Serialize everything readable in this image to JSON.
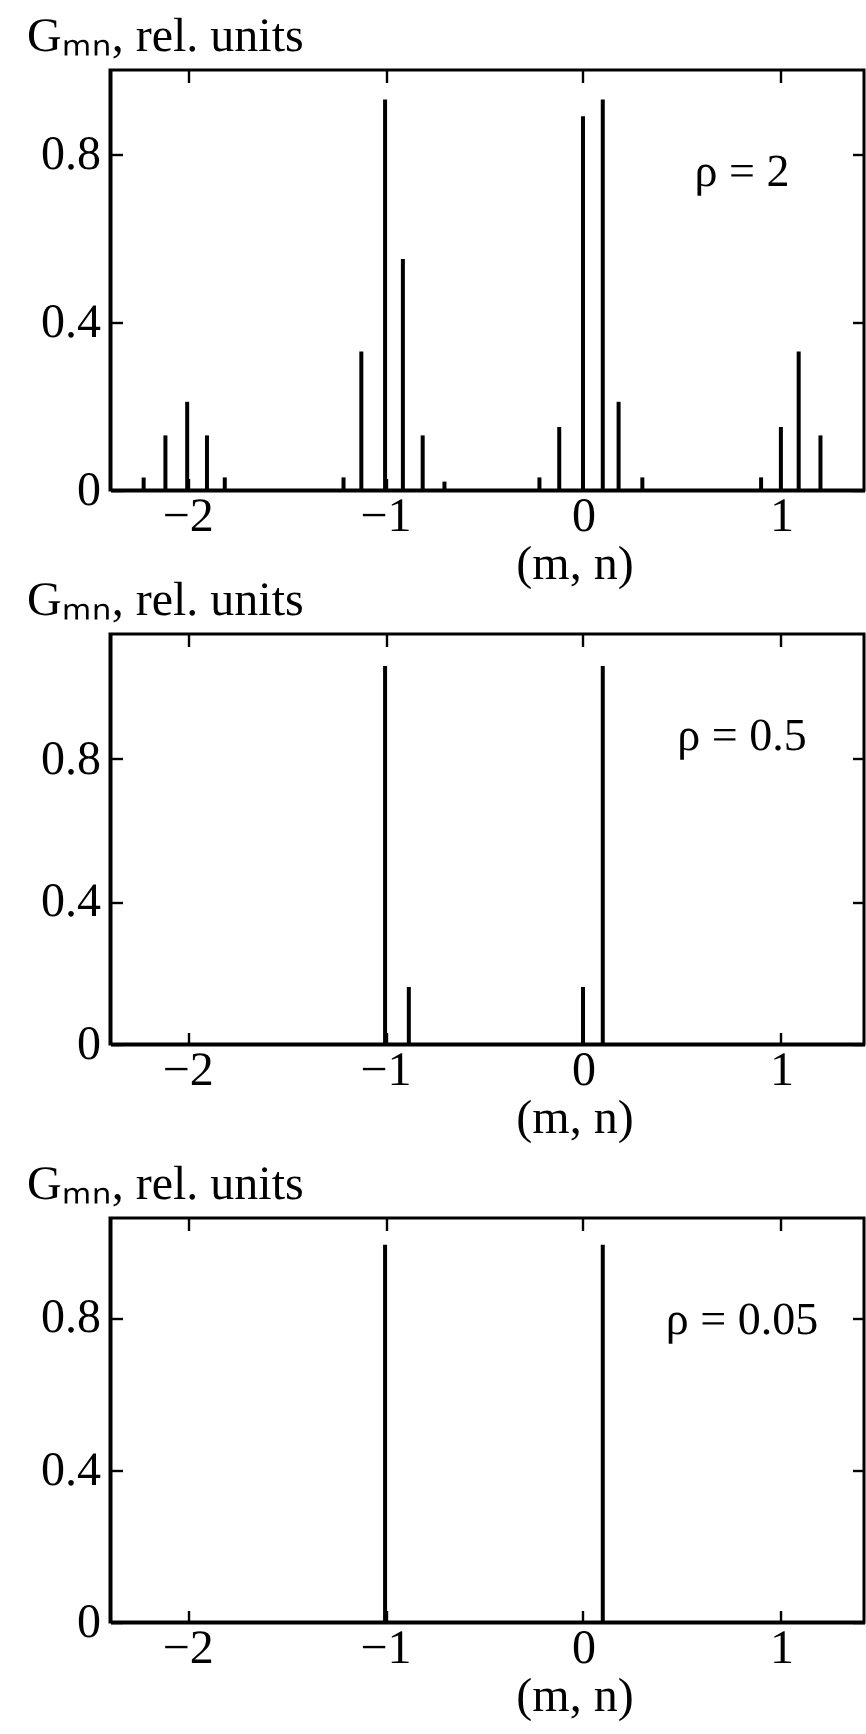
{
  "chart_data": [
    {
      "type": "bar",
      "xlabel": "(m, n)",
      "ylabel": "Gₘₙ, rel. units",
      "annotations": [
        "ρ = 2"
      ],
      "x": [
        -2.22,
        -2.11,
        -2.0,
        -1.9,
        -1.81,
        -1.21,
        -1.12,
        -1.0,
        -0.91,
        -0.81,
        -0.7,
        -0.22,
        -0.12,
        0.0,
        0.1,
        0.18,
        0.3,
        0.9,
        1.0,
        1.09,
        1.2
      ],
      "values": [
        0.03,
        0.13,
        0.21,
        0.13,
        0.03,
        0.03,
        0.33,
        0.93,
        0.55,
        0.13,
        0.02,
        0.03,
        0.15,
        0.89,
        0.93,
        0.21,
        0.03,
        0.03,
        0.15,
        0.33,
        0.13
      ],
      "color": "#000000",
      "xlim": [
        -2.39,
        1.42
      ],
      "ylim": [
        0,
        1.0
      ],
      "xticks": [
        -2,
        -1,
        0,
        1
      ],
      "yticks": [
        0,
        0.4,
        0.8
      ]
    },
    {
      "type": "bar",
      "xlabel": "(m, n)",
      "ylabel": "Gₘₙ, rel. units",
      "annotations": [
        "ρ = 0.5"
      ],
      "x": [
        -1.0,
        -0.88,
        0.0,
        0.1
      ],
      "values": [
        1.06,
        0.16,
        0.16,
        1.06
      ],
      "color": "#000000",
      "xlim": [
        -2.39,
        1.42
      ],
      "ylim": [
        0,
        1.15
      ],
      "xticks": [
        -2,
        -1,
        0,
        1
      ],
      "yticks": [
        0,
        0.4,
        0.8
      ]
    },
    {
      "type": "bar",
      "xlabel": "(m, n)",
      "ylabel": "Gₘₙ, rel. units",
      "annotations": [
        "ρ = 0.05"
      ],
      "x": [
        -1.0,
        0.1
      ],
      "values": [
        0.99,
        0.99
      ],
      "color": "#000000",
      "xlim": [
        -2.39,
        1.42
      ],
      "ylim": [
        0,
        1.06
      ],
      "xticks": [
        -2,
        -1,
        0,
        1
      ],
      "yticks": [
        0,
        0.4,
        0.8
      ]
    }
  ]
}
